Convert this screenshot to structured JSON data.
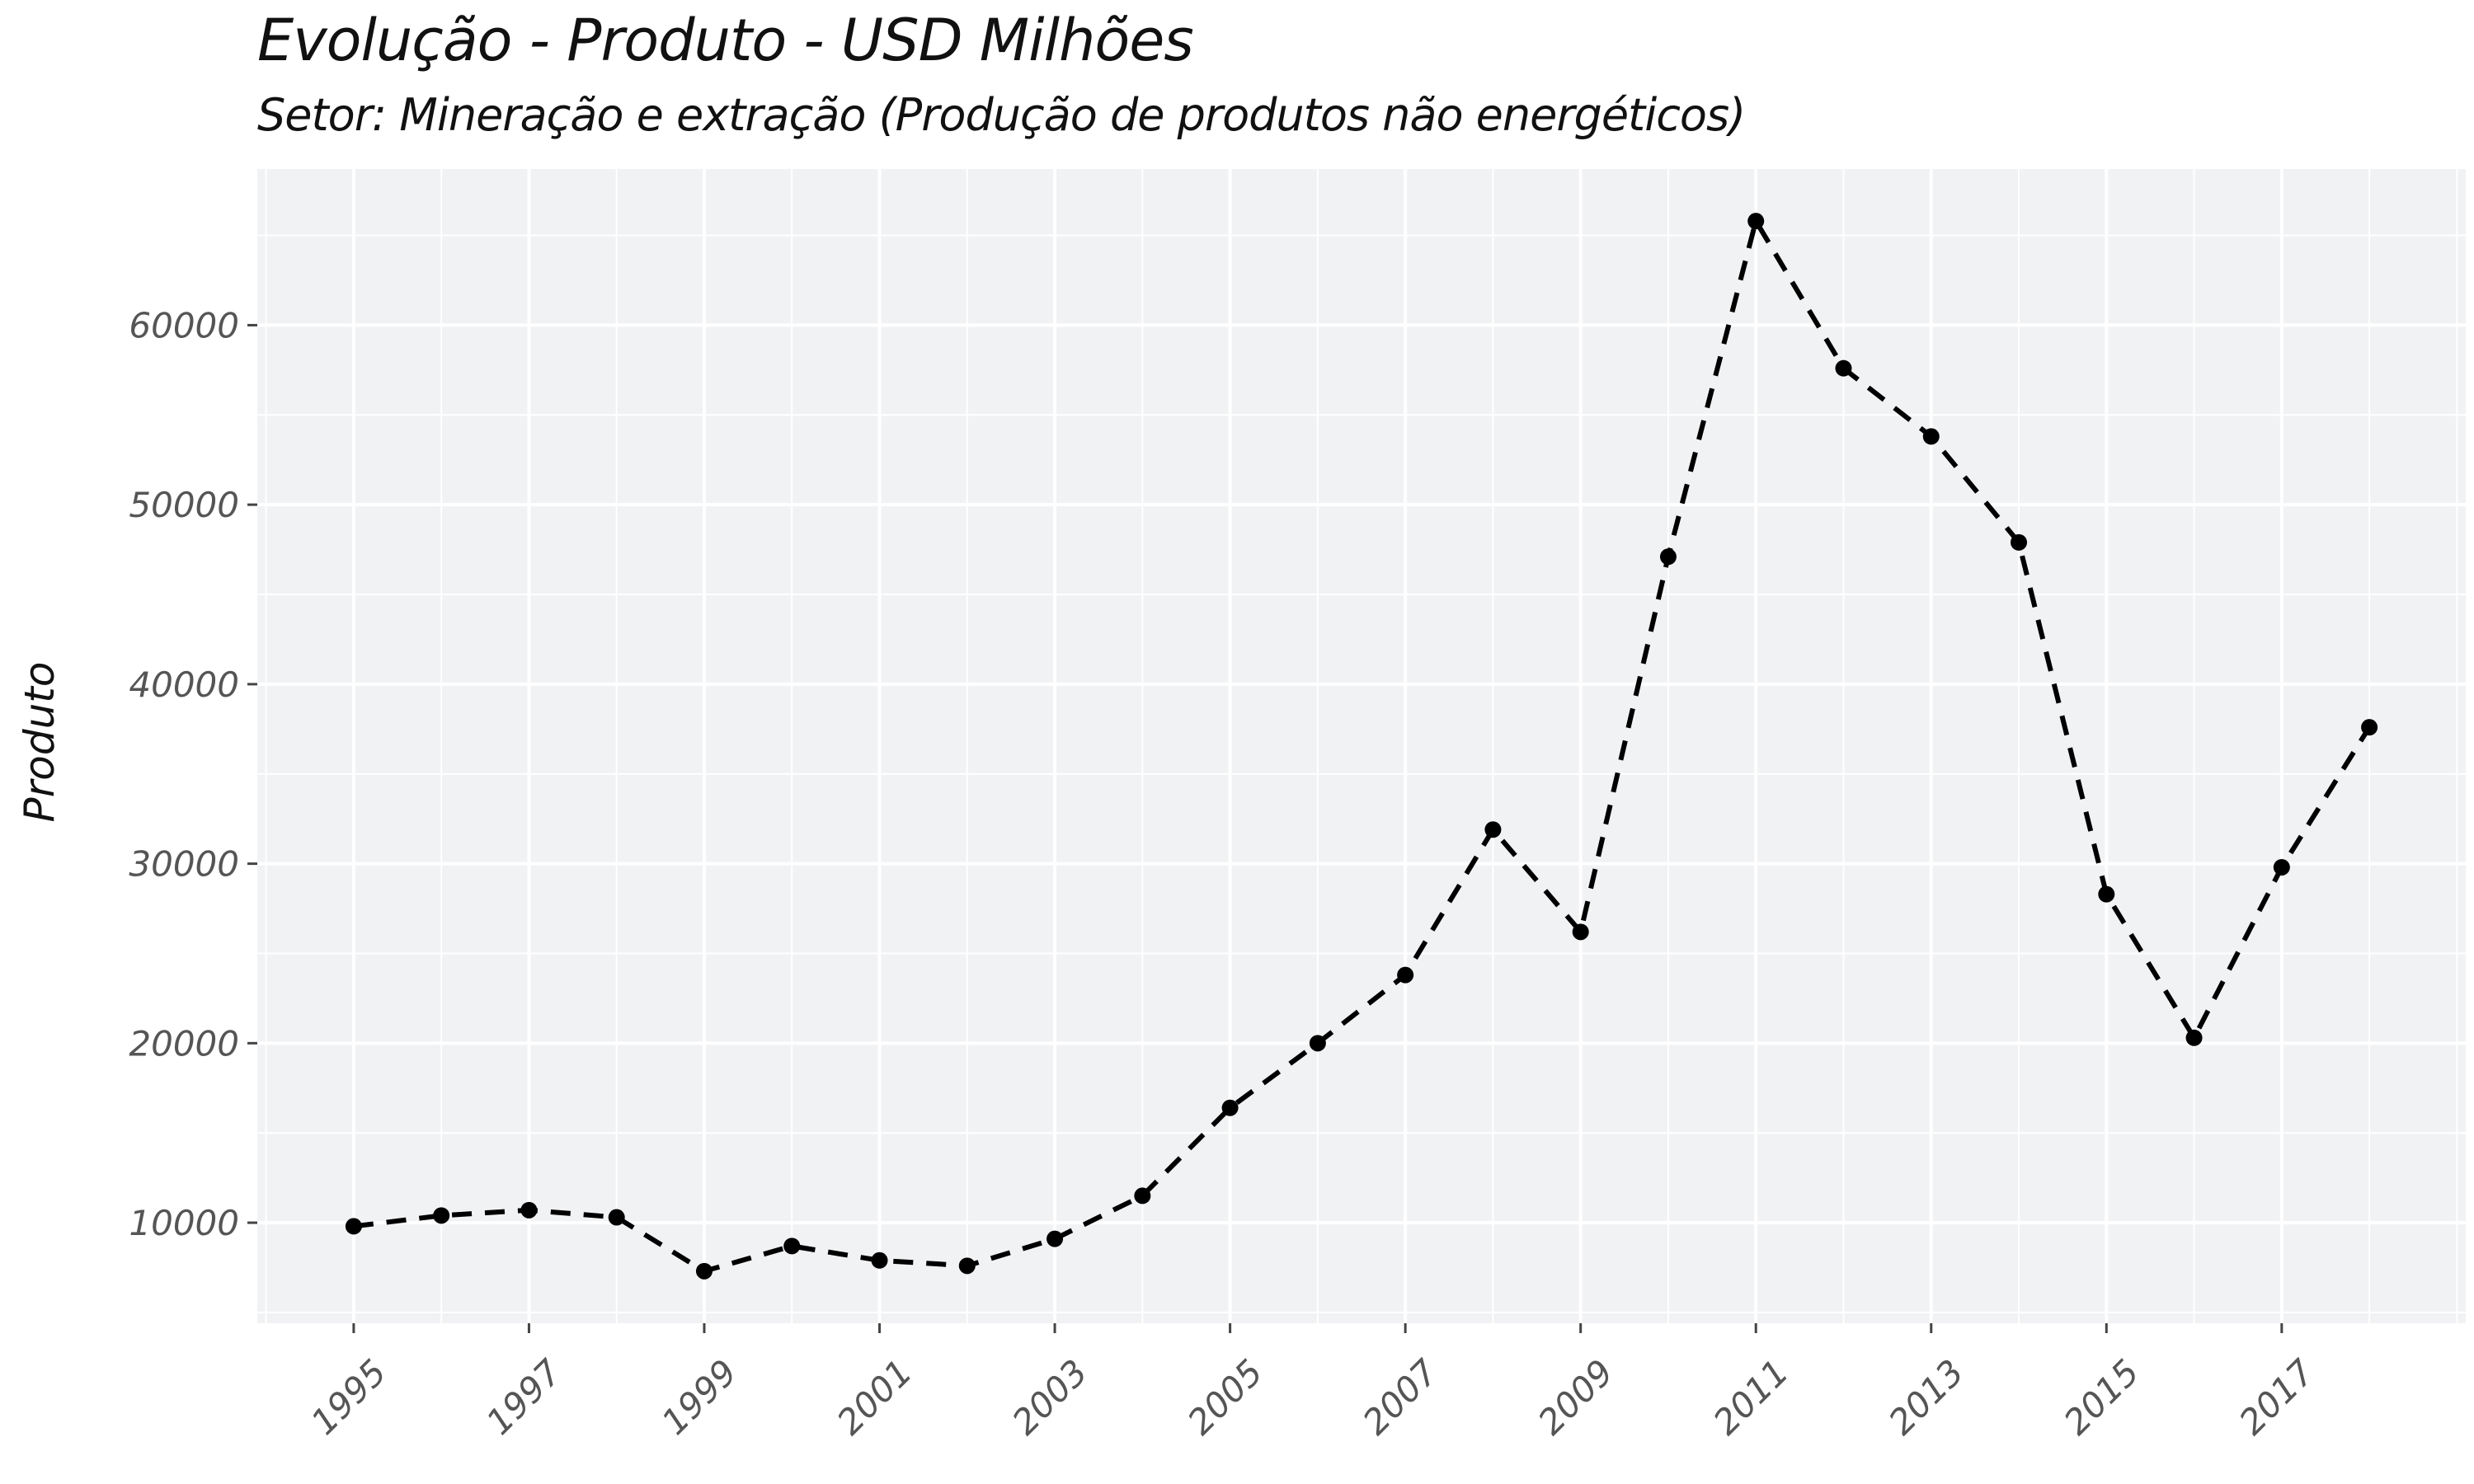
{
  "chart_data": {
    "type": "line",
    "title": "Evolução - Produto - USD Milhões",
    "subtitle": "Setor: Mineração e extração (Produção de produtos não energéticos)",
    "xlabel": "",
    "ylabel": "Produto",
    "x": [
      1995,
      1996,
      1997,
      1998,
      1999,
      2000,
      2001,
      2002,
      2003,
      2004,
      2005,
      2006,
      2007,
      2008,
      2009,
      2010,
      2011,
      2012,
      2013,
      2014,
      2015,
      2016,
      2017,
      2018
    ],
    "series": [
      {
        "values": [
          9800,
          10400,
          10700,
          10300,
          7300,
          8700,
          7900,
          7600,
          9100,
          11500,
          16400,
          20000,
          23800,
          31900,
          26200,
          47100,
          65800,
          57600,
          53800,
          47900,
          28300,
          20300,
          29800,
          37600
        ],
        "line_style": "dashed",
        "color": "#000000",
        "markers": true
      }
    ],
    "xticks": [
      "1995",
      "1997",
      "1999",
      "2001",
      "2003",
      "2005",
      "2007",
      "2009",
      "2011",
      "2013",
      "2015",
      "2017"
    ],
    "yticks": [
      "10000",
      "20000",
      "30000",
      "40000",
      "50000",
      "60000"
    ],
    "xlim": [
      1993.9,
      2019.1
    ],
    "ylim": [
      4400,
      68700
    ],
    "grid": true,
    "panel_background": "#f1f2f4",
    "grid_color": "#ffffff"
  }
}
